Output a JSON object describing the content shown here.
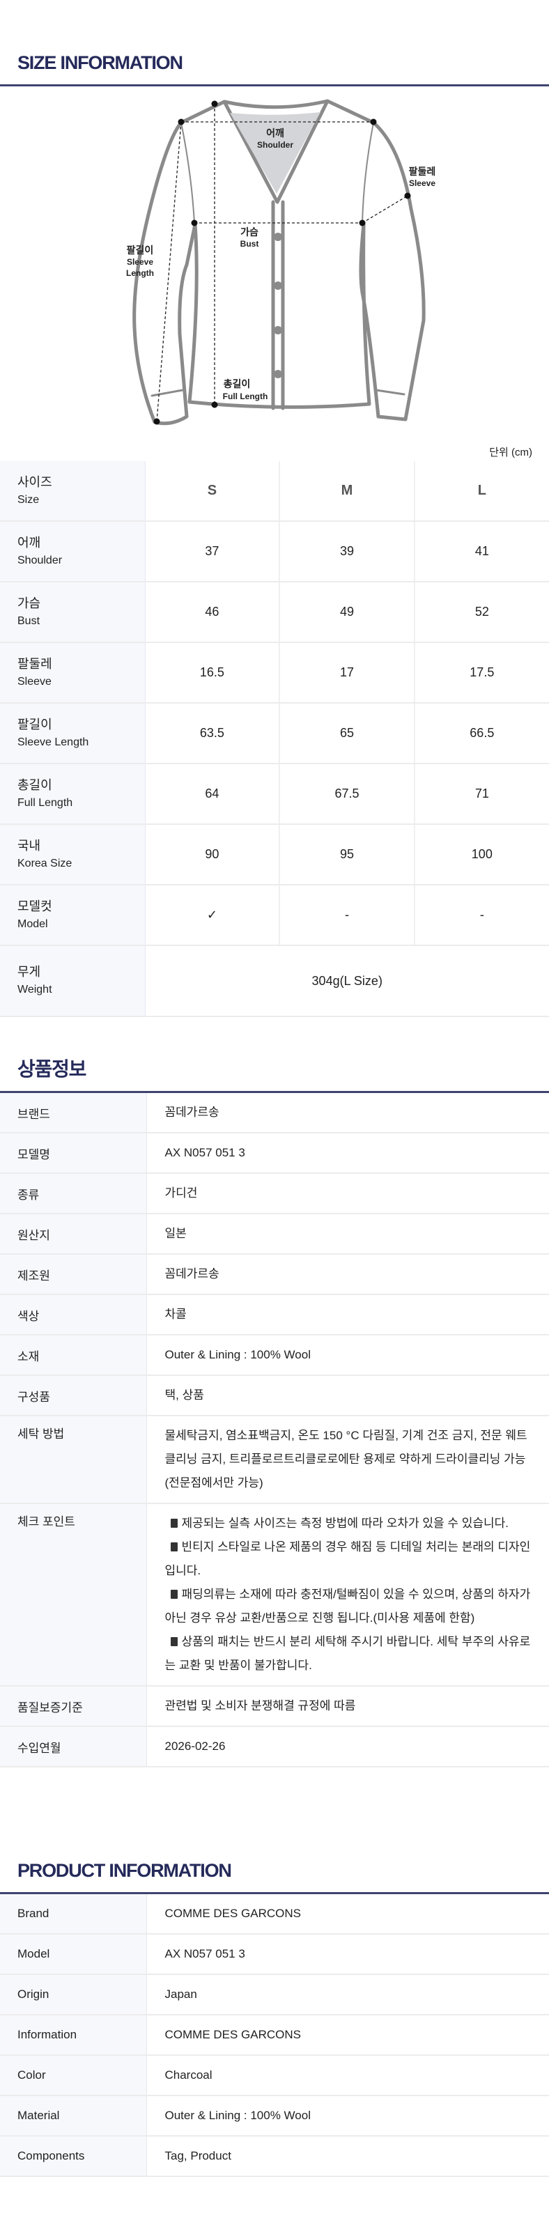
{
  "size_section": {
    "title": "SIZE INFORMATION",
    "unit": "단위 (cm)",
    "diagram_labels": {
      "shoulder_ko": "어깨",
      "shoulder_en": "Shoulder",
      "sleeve_ko": "팔둘레",
      "sleeve_en": "Sleeve",
      "bust_ko": "가슴",
      "bust_en": "Bust",
      "sleeve_length_ko": "팔길이",
      "sleeve_length_en1": "Sleeve",
      "sleeve_length_en2": "Length",
      "full_length_ko": "총길이",
      "full_length_en": "Full Length"
    },
    "header": {
      "ko": "사이즈",
      "en": "Size",
      "sizes": [
        "S",
        "M",
        "L"
      ]
    },
    "rows": [
      {
        "ko": "어깨",
        "en": "Shoulder",
        "values": [
          "37",
          "39",
          "41"
        ]
      },
      {
        "ko": "가슴",
        "en": "Bust",
        "values": [
          "46",
          "49",
          "52"
        ]
      },
      {
        "ko": "팔둘레",
        "en": "Sleeve",
        "values": [
          "16.5",
          "17",
          "17.5"
        ]
      },
      {
        "ko": "팔길이",
        "en": "Sleeve Length",
        "values": [
          "63.5",
          "65",
          "66.5"
        ]
      },
      {
        "ko": "총길이",
        "en": "Full Length",
        "values": [
          "64",
          "67.5",
          "71"
        ]
      },
      {
        "ko": "국내",
        "en": "Korea Size",
        "values": [
          "90",
          "95",
          "100"
        ]
      },
      {
        "ko": "모델컷",
        "en": "Model",
        "values": [
          "✓",
          "-",
          "-"
        ]
      }
    ],
    "weight": {
      "ko": "무게",
      "en": "Weight",
      "value": "304g(L Size)"
    }
  },
  "info_ko": {
    "title": "상품정보",
    "rows": [
      {
        "label": "브랜드",
        "value": "꼼데가르송"
      },
      {
        "label": "모델명",
        "value": "AX N057 051 3"
      },
      {
        "label": "종류",
        "value": "가디건"
      },
      {
        "label": "원산지",
        "value": "일본"
      },
      {
        "label": "제조원",
        "value": "꼼데가르송"
      },
      {
        "label": "색상",
        "value": "차콜"
      },
      {
        "label": "소재",
        "value": "Outer & Lining : 100% Wool"
      },
      {
        "label": "구성품",
        "value": "택, 상품"
      },
      {
        "label": "세탁 방법",
        "value": "물세탁금지, 염소표백금지, 온도 150 °C 다림질, 기계 건조 금지, 전문 웨트클리닝 금지, 트리플로르트리클로로에탄 용제로 약하게 드라이클리닝 가능(전문점에서만 가능)"
      }
    ],
    "checkpoint": {
      "label": "체크 포인트",
      "notes": [
        "제공되는 실측 사이즈는 측정 방법에 따라 오차가 있을 수 있습니다.",
        "빈티지 스타일로 나온 제품의 경우 해짐 등 디테일 처리는 본래의 디자인입니다.",
        "패딩의류는 소재에 따라 충전재/털빠짐이 있을 수 있으며, 상품의 하자가 아닌 경우 유상 교환/반품으로 진행 됩니다.(미사용 제품에 한함)",
        "상품의 패치는 반드시 분리 세탁해 주시기 바랍니다. 세탁 부주의 사유로는 교환 및 반품이 불가합니다."
      ]
    },
    "rows_after": [
      {
        "label": "품질보증기준",
        "value": "관련법 및 소비자 분쟁해결 규정에 따름"
      },
      {
        "label": "수입연월",
        "value": "2026-02-26"
      }
    ]
  },
  "info_en": {
    "title": "PRODUCT INFORMATION",
    "rows": [
      {
        "label": "Brand",
        "value": "COMME DES GARCONS"
      },
      {
        "label": "Model",
        "value": "AX N057 051 3"
      },
      {
        "label": "Origin",
        "value": "Japan"
      },
      {
        "label": "Information",
        "value": "COMME DES GARCONS"
      },
      {
        "label": "Color",
        "value": "Charcoal"
      },
      {
        "label": "Material",
        "value": "Outer & Lining : 100% Wool"
      },
      {
        "label": "Components",
        "value": "Tag, Product"
      }
    ]
  },
  "colors": {
    "title_navy": "#252a5a",
    "rule": "#3f4370",
    "label_bg": "#f7f8fc",
    "garment_outline": "#8a8a8a",
    "neck_fill": "#d4d5d8"
  }
}
